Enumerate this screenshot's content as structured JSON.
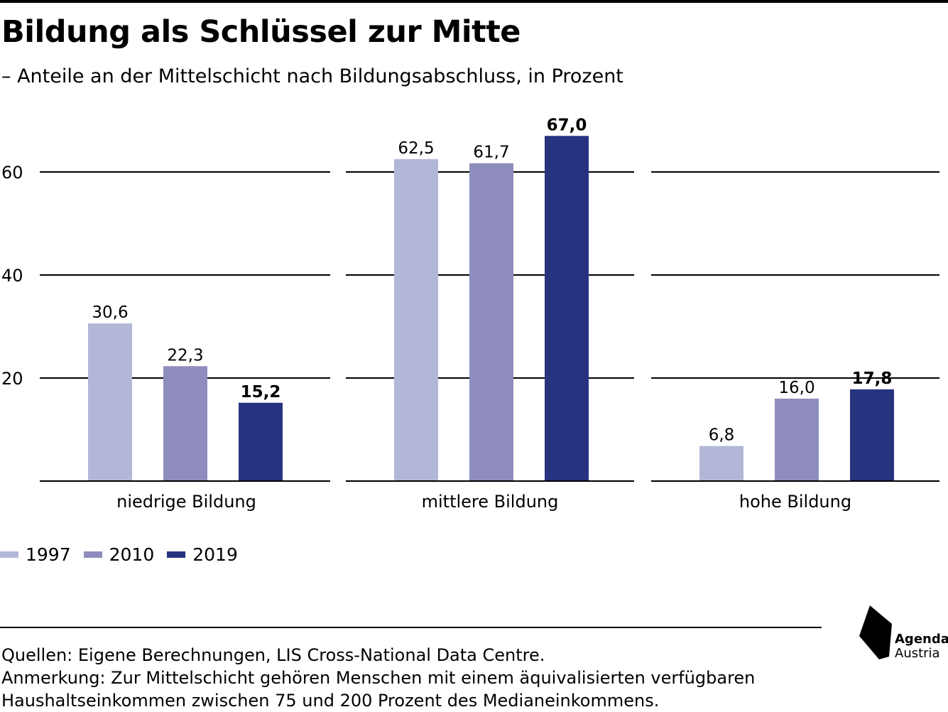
{
  "title": "Bildung als Schlüssel zur Mitte",
  "subtitle": "– Anteile an der Mittelschicht nach Bildungsabschluss, in Prozent",
  "chart_data": {
    "type": "bar",
    "title": "Bildung als Schlüssel zur Mitte",
    "subtitle": "– Anteile an der Mittelschicht nach Bildungsabschluss, in Prozent",
    "categories": [
      "niedrige Bildung",
      "mittlere Bildung",
      "hohe Bildung"
    ],
    "series": [
      {
        "name": "1997",
        "color": "#b3b7d7",
        "values": [
          30.6,
          62.5,
          6.8
        ],
        "labels": [
          "30,6",
          "62,5",
          "6,8"
        ]
      },
      {
        "name": "2010",
        "color": "#8e8dbd",
        "values": [
          22.3,
          61.7,
          16.0
        ],
        "labels": [
          "22,3",
          "61,7",
          "16,0"
        ]
      },
      {
        "name": "2019",
        "color": "#263480",
        "values": [
          15.2,
          67.0,
          17.8
        ],
        "labels": [
          "15,2",
          "67,0",
          "17,8"
        ]
      }
    ],
    "yticks": [
      "20",
      "40",
      "60"
    ],
    "ylim": [
      0,
      70
    ],
    "grid": true,
    "legend_position": "bottom-left",
    "xlabel": "",
    "ylabel": ""
  },
  "legend": [
    {
      "label": "1997",
      "color": "#b3b7d7"
    },
    {
      "label": "2010",
      "color": "#8e8dbd"
    },
    {
      "label": "2019",
      "color": "#263480"
    }
  ],
  "footer": {
    "sources": "Quellen: Eigene Berechnungen, LIS Cross-National Data Centre.",
    "note_line1": "Anmerkung: Zur Mittelschicht gehören Menschen mit einem äquivalisierten verfügbaren",
    "note_line2": "Haushaltseinkommen zwischen 75 und 200 Prozent des Medianeinkommens."
  },
  "logo": {
    "line1": "Agenda",
    "line2": "Austria"
  }
}
